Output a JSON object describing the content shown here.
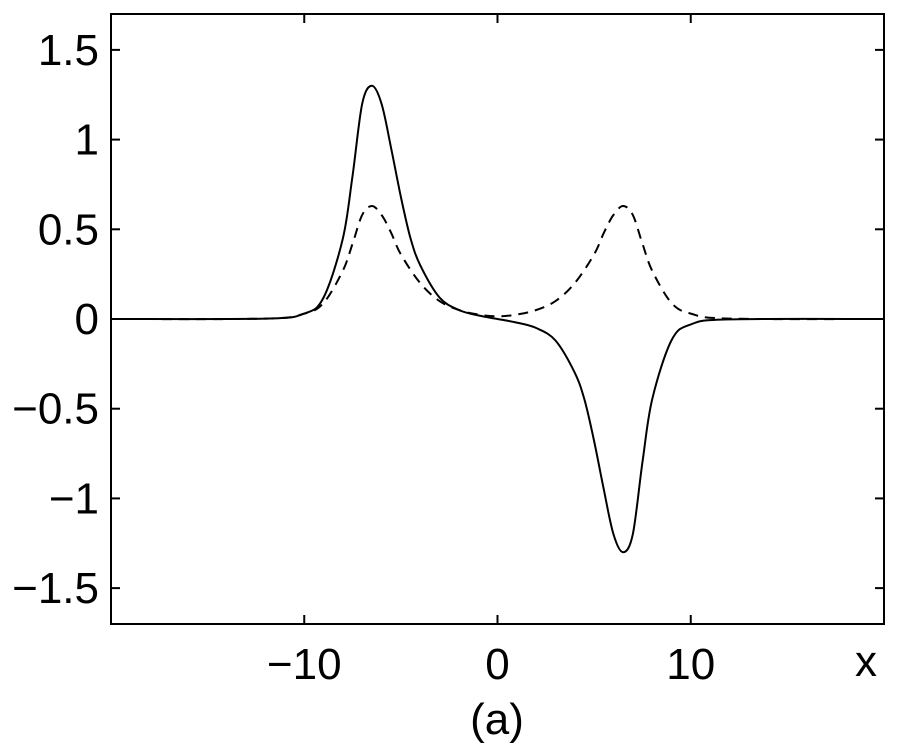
{
  "chart_data": {
    "type": "line",
    "title": "",
    "caption": "(a)",
    "xlabel": "x",
    "ylabel": "",
    "xlim": [
      -20,
      20
    ],
    "ylim": [
      -1.7,
      1.7
    ],
    "grid": false,
    "x_ticks": [
      -10,
      0,
      10
    ],
    "x_tick_labels": [
      "−10",
      "0",
      "10"
    ],
    "y_ticks": [
      -1.5,
      -1,
      -0.5,
      0,
      0.5,
      1,
      1.5
    ],
    "y_tick_labels": [
      "−1.5",
      "−1",
      "−0.5",
      "0",
      "0.5",
      "1",
      "1.5"
    ],
    "series": [
      {
        "style": "solid",
        "color": "#000000",
        "x": [
          -20,
          -12,
          -10,
          -9,
          -8,
          -7.5,
          -7,
          -6.5,
          -6,
          -5.5,
          -5,
          -4.5,
          -4,
          -3,
          -2,
          -1,
          0,
          1,
          2,
          3,
          4,
          4.5,
          5,
          5.5,
          6,
          6.5,
          7,
          7.5,
          8,
          9,
          10,
          12,
          20
        ],
        "y": [
          0,
          0.002,
          0.03,
          0.12,
          0.45,
          0.8,
          1.2,
          1.3,
          1.2,
          0.95,
          0.68,
          0.45,
          0.3,
          0.12,
          0.05,
          0.02,
          0,
          -0.02,
          -0.05,
          -0.12,
          -0.3,
          -0.45,
          -0.68,
          -0.95,
          -1.2,
          -1.3,
          -1.2,
          -0.8,
          -0.45,
          -0.12,
          -0.03,
          -0.002,
          0
        ]
      },
      {
        "style": "dashed",
        "color": "#000000",
        "x": [
          -20,
          -12,
          -10,
          -9,
          -8,
          -7.5,
          -7,
          -6.5,
          -6,
          -5.5,
          -5,
          -4,
          -3,
          -2,
          -1,
          0,
          1,
          2,
          3,
          4,
          5,
          5.5,
          6,
          6.5,
          7,
          7.5,
          8,
          9,
          10,
          12,
          20
        ],
        "y": [
          0,
          0.002,
          0.03,
          0.09,
          0.27,
          0.42,
          0.58,
          0.63,
          0.58,
          0.48,
          0.36,
          0.2,
          0.1,
          0.05,
          0.025,
          0.015,
          0.025,
          0.05,
          0.1,
          0.2,
          0.36,
          0.48,
          0.58,
          0.63,
          0.58,
          0.42,
          0.27,
          0.09,
          0.03,
          0.002,
          0
        ]
      }
    ]
  }
}
